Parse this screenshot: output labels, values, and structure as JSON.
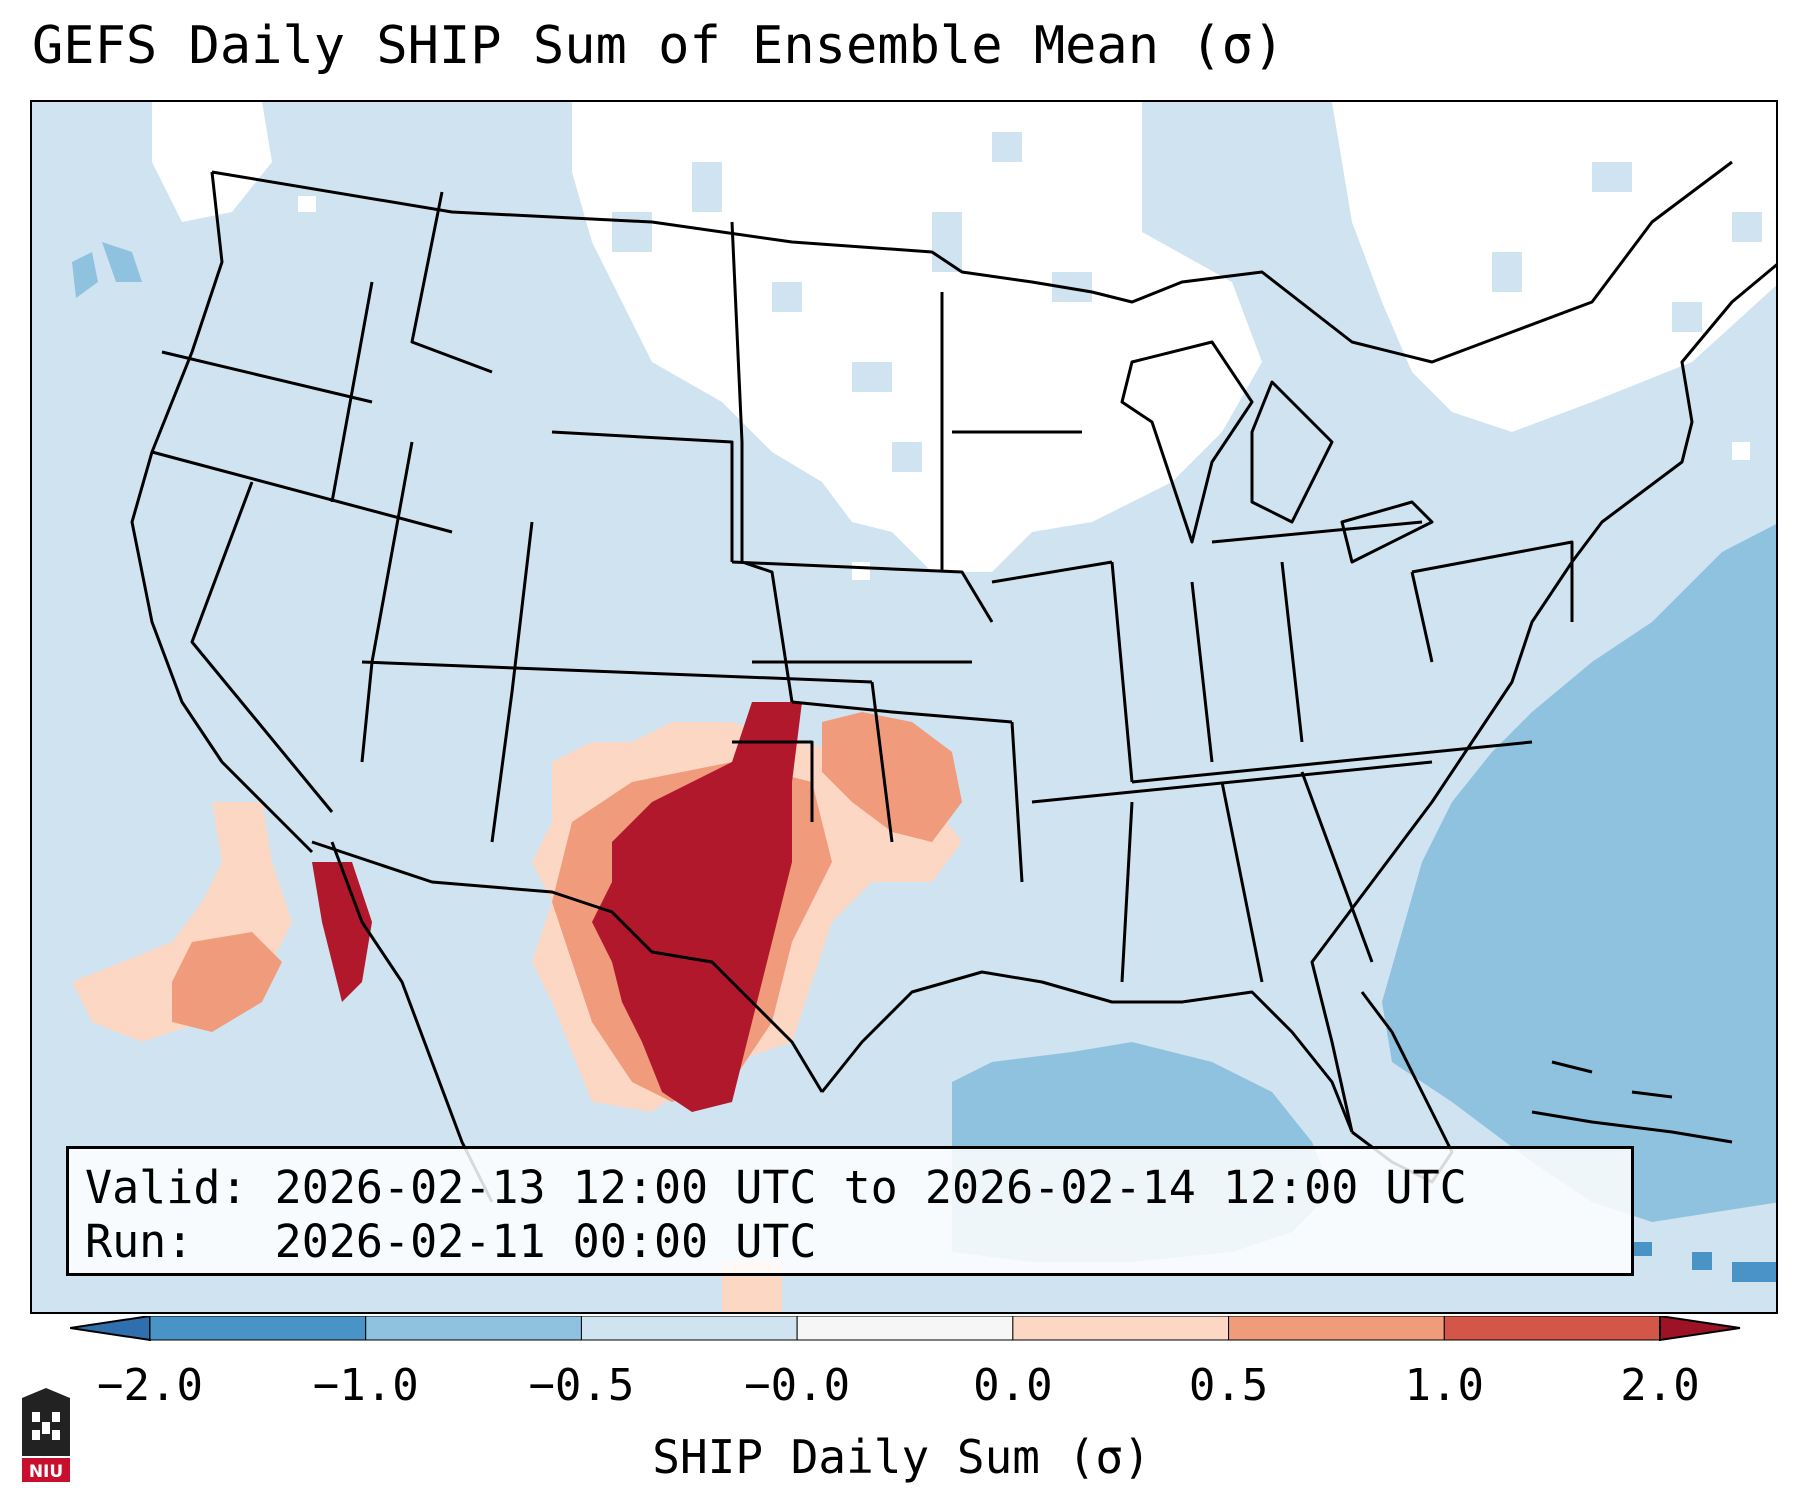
{
  "title": "GEFS Daily SHIP Sum of Ensemble Mean (σ)",
  "info": {
    "valid_line": "Valid: 2026-02-13 12:00 UTC to 2026-02-14 12:00 UTC",
    "run_line": "Run:   2026-02-11 00:00 UTC"
  },
  "colorbar": {
    "title": "SHIP Daily Sum (σ)",
    "ticks": [
      "−2.0",
      "−1.0",
      "−0.5",
      "−0.0",
      "0.0",
      "0.5",
      "1.0",
      "2.0"
    ],
    "colors": [
      "#4a93c6",
      "#8fc2de",
      "#cfe3f0",
      "#f6f6f6",
      "#fcd8c4",
      "#f09b7b",
      "#d25749",
      "#b2182b"
    ]
  },
  "logo": {
    "text": "NIU",
    "color": "#c8102e"
  },
  "map": {
    "region": "Continental United States",
    "legend_levels": {
      "light_blue": "#cfe3f0",
      "mid_blue": "#8fc2de",
      "light_red": "#fcd8c4",
      "mid_red": "#f09b7b",
      "dark_red": "#b2182b"
    }
  }
}
